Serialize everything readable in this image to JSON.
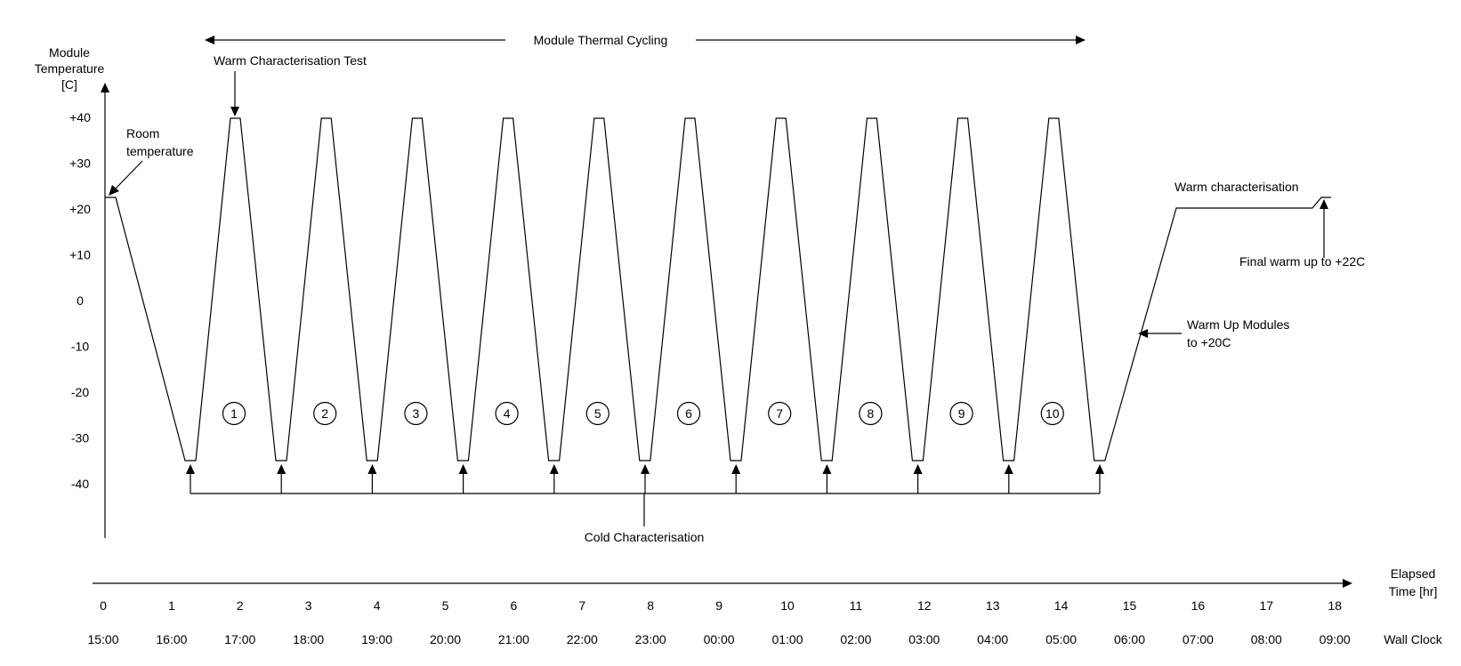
{
  "title": "Module Thermal Cycling",
  "y_axis": {
    "label_lines": [
      "Module",
      "Temperature",
      "[C]"
    ],
    "ticks": [
      "+40",
      "+30",
      "+20",
      "+10",
      "0",
      "-10",
      "-20",
      "-30",
      "-40"
    ]
  },
  "x_axis": {
    "label_lines": [
      "Elapsed",
      "Time [hr]"
    ],
    "elapsed_ticks": [
      "0",
      "1",
      "2",
      "3",
      "4",
      "5",
      "6",
      "7",
      "8",
      "9",
      "10",
      "11",
      "12",
      "13",
      "14",
      "15",
      "16",
      "17",
      "18"
    ],
    "wall_clock_label": "Wall Clock",
    "wall_clock_ticks": [
      "15:00",
      "16:00",
      "17:00",
      "18:00",
      "19:00",
      "20:00",
      "21:00",
      "22:00",
      "23:00",
      "00:00",
      "01:00",
      "02:00",
      "03:00",
      "04:00",
      "05:00",
      "06:00",
      "07:00",
      "08:00",
      "09:00"
    ]
  },
  "cycle_labels": [
    "1",
    "2",
    "3",
    "4",
    "5",
    "6",
    "7",
    "8",
    "9",
    "10"
  ],
  "annotations": {
    "room_temperature_lines": [
      "Room",
      "temperature"
    ],
    "warm_characterisation_test": "Warm Characterisation Test",
    "cold_characterisation": "Cold Characterisation",
    "warm_characterisation": "Warm characterisation",
    "final_warm_up": "Final warm up to +22C",
    "warm_up_modules_lines": [
      "Warm Up Modules",
      "to +20C"
    ]
  }
}
